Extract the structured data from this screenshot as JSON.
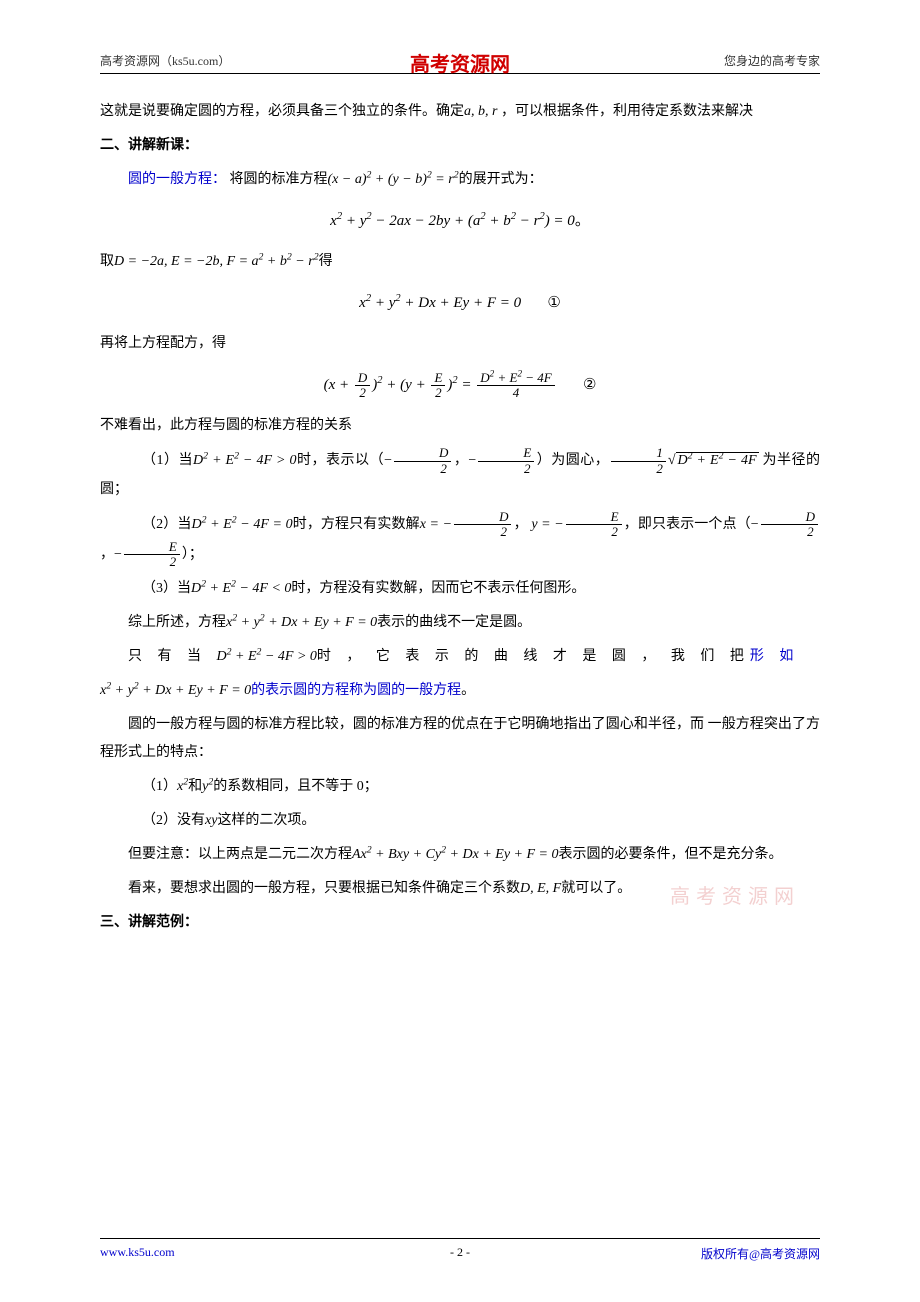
{
  "header": {
    "left": "高考资源网（ks5u.com）",
    "center": "高考资源网",
    "right": "您身边的高考专家"
  },
  "footer": {
    "left": "www.ks5u.com",
    "center": "- 2 -",
    "right": "版权所有@高考资源网"
  },
  "watermark": "高考资源网",
  "colors": {
    "text": "#000000",
    "link": "#0000cc",
    "brand": "#d00000",
    "watermark": "rgba(220,120,120,0.35)",
    "background": "#ffffff"
  },
  "content": {
    "p1_pre": "这就是说要确定圆的方程，必须具备三个独立的条件。确定",
    "p1_math": "a, b, r",
    "p1_post": " ，可以根据条件，利用待定系数法来解决",
    "h2": "二、讲解新课：",
    "p2_label": "圆的一般方程：",
    "p2_text": " 将圆的标准方程",
    "p2_math": "(x − a)² + (y − b)² = r²",
    "p2_post": "的展开式为：",
    "eq1": "x² + y² − 2ax − 2by + (a² + b² − r²) = 0。",
    "p3_pre": "取",
    "p3_math": "D = −2a, E = −2b, F = a² + b² − r²",
    "p3_post": "得",
    "eq2": "x² + y² + Dx + Ey + F = 0        ①",
    "p4": "再将上方程配方，得",
    "eq3_left": "(x + ",
    "eq3_frac1_num": "D",
    "eq3_frac1_den": "2",
    "eq3_mid1": ")² + (y + ",
    "eq3_frac2_num": "E",
    "eq3_frac2_den": "2",
    "eq3_mid2": ")² = ",
    "eq3_frac3_num": "D² + E² − 4F",
    "eq3_frac3_den": "4",
    "eq3_label": "        ②",
    "p5": "不难看出，此方程与圆的标准方程的关系",
    "case1_pre": "（1）当",
    "case1_cond": "D² + E² − 4F > 0",
    "case1_mid1": "时，表示以（",
    "case1_neg1": "−",
    "case1_frac1_num": "D",
    "case1_frac1_den": "2",
    "case1_comma": "，",
    "case1_neg2": "−",
    "case1_frac2_num": "E",
    "case1_frac2_den": "2",
    "case1_mid2": "）为圆心，",
    "case1_frac3_num": "1",
    "case1_frac3_den": "2",
    "case1_sqrt": "D² + E² − 4F",
    "case1_post": " 为半径的圆；",
    "case2_pre": "（2）当",
    "case2_cond": "D² + E² − 4F = 0",
    "case2_mid1": "时，方程只有实数解",
    "case2_x": "x = −",
    "case2_frac1_num": "D",
    "case2_frac1_den": "2",
    "case2_comma": "，",
    "case2_y": "y = −",
    "case2_frac2_num": "E",
    "case2_frac2_den": "2",
    "case2_mid2": "，即只表示一个点（",
    "case2_neg1": "−",
    "case2_frac3_num": "D",
    "case2_frac3_den": "2",
    "case2_comma2": "，",
    "case2_neg2": "−",
    "case2_frac4_num": "E",
    "case2_frac4_den": "2",
    "case2_post": "）；",
    "case3_pre": "（3）当",
    "case3_cond": "D² + E² − 4F < 0",
    "case3_post": "时，方程没有实数解，因而它不表示任何图形。",
    "summary_pre": "综上所述，方程",
    "summary_math": "x² + y² + Dx + Ey + F = 0",
    "summary_post": "表示的曲线不一定是圆。",
    "only_pre": "只 有 当 ",
    "only_cond": "D² + E² − 4F > 0",
    "only_mid": "时 ， 它 表 示 的 曲 线 才 是 圆 ， 我 们 把",
    "only_blue_pre": "形 如",
    "only_eq": "x² + y² + Dx + Ey + F = 0",
    "only_blue_post": "的表示圆的方程称为圆的一般方程",
    "only_period": "。",
    "compare": "圆的一般方程与圆的标准方程比较，圆的标准方程的优点在于它明确地指出了圆心和半径，而 一般方程突出了方程形式上的特点：",
    "feat1_pre": "（1）",
    "feat1_math1": "x²",
    "feat1_mid": "和",
    "feat1_math2": "y²",
    "feat1_post": "的系数相同，且不等于 0；",
    "feat2_pre": "（2）没有",
    "feat2_math": "xy",
    "feat2_post": "这样的二次项。",
    "note_pre": "但要注意：以上两点是二元二次方程",
    "note_math": "Ax² + Bxy + Cy² + Dx + Ey + F = 0",
    "note_post": "表示圆的必要条件，但不是充分条。",
    "final_pre": "看来，要想求出圆的一般方程，只要根据已知条件确定三个系数",
    "final_math": "D, E, F",
    "final_post": "就可以了。",
    "h3": "三、讲解范例："
  }
}
